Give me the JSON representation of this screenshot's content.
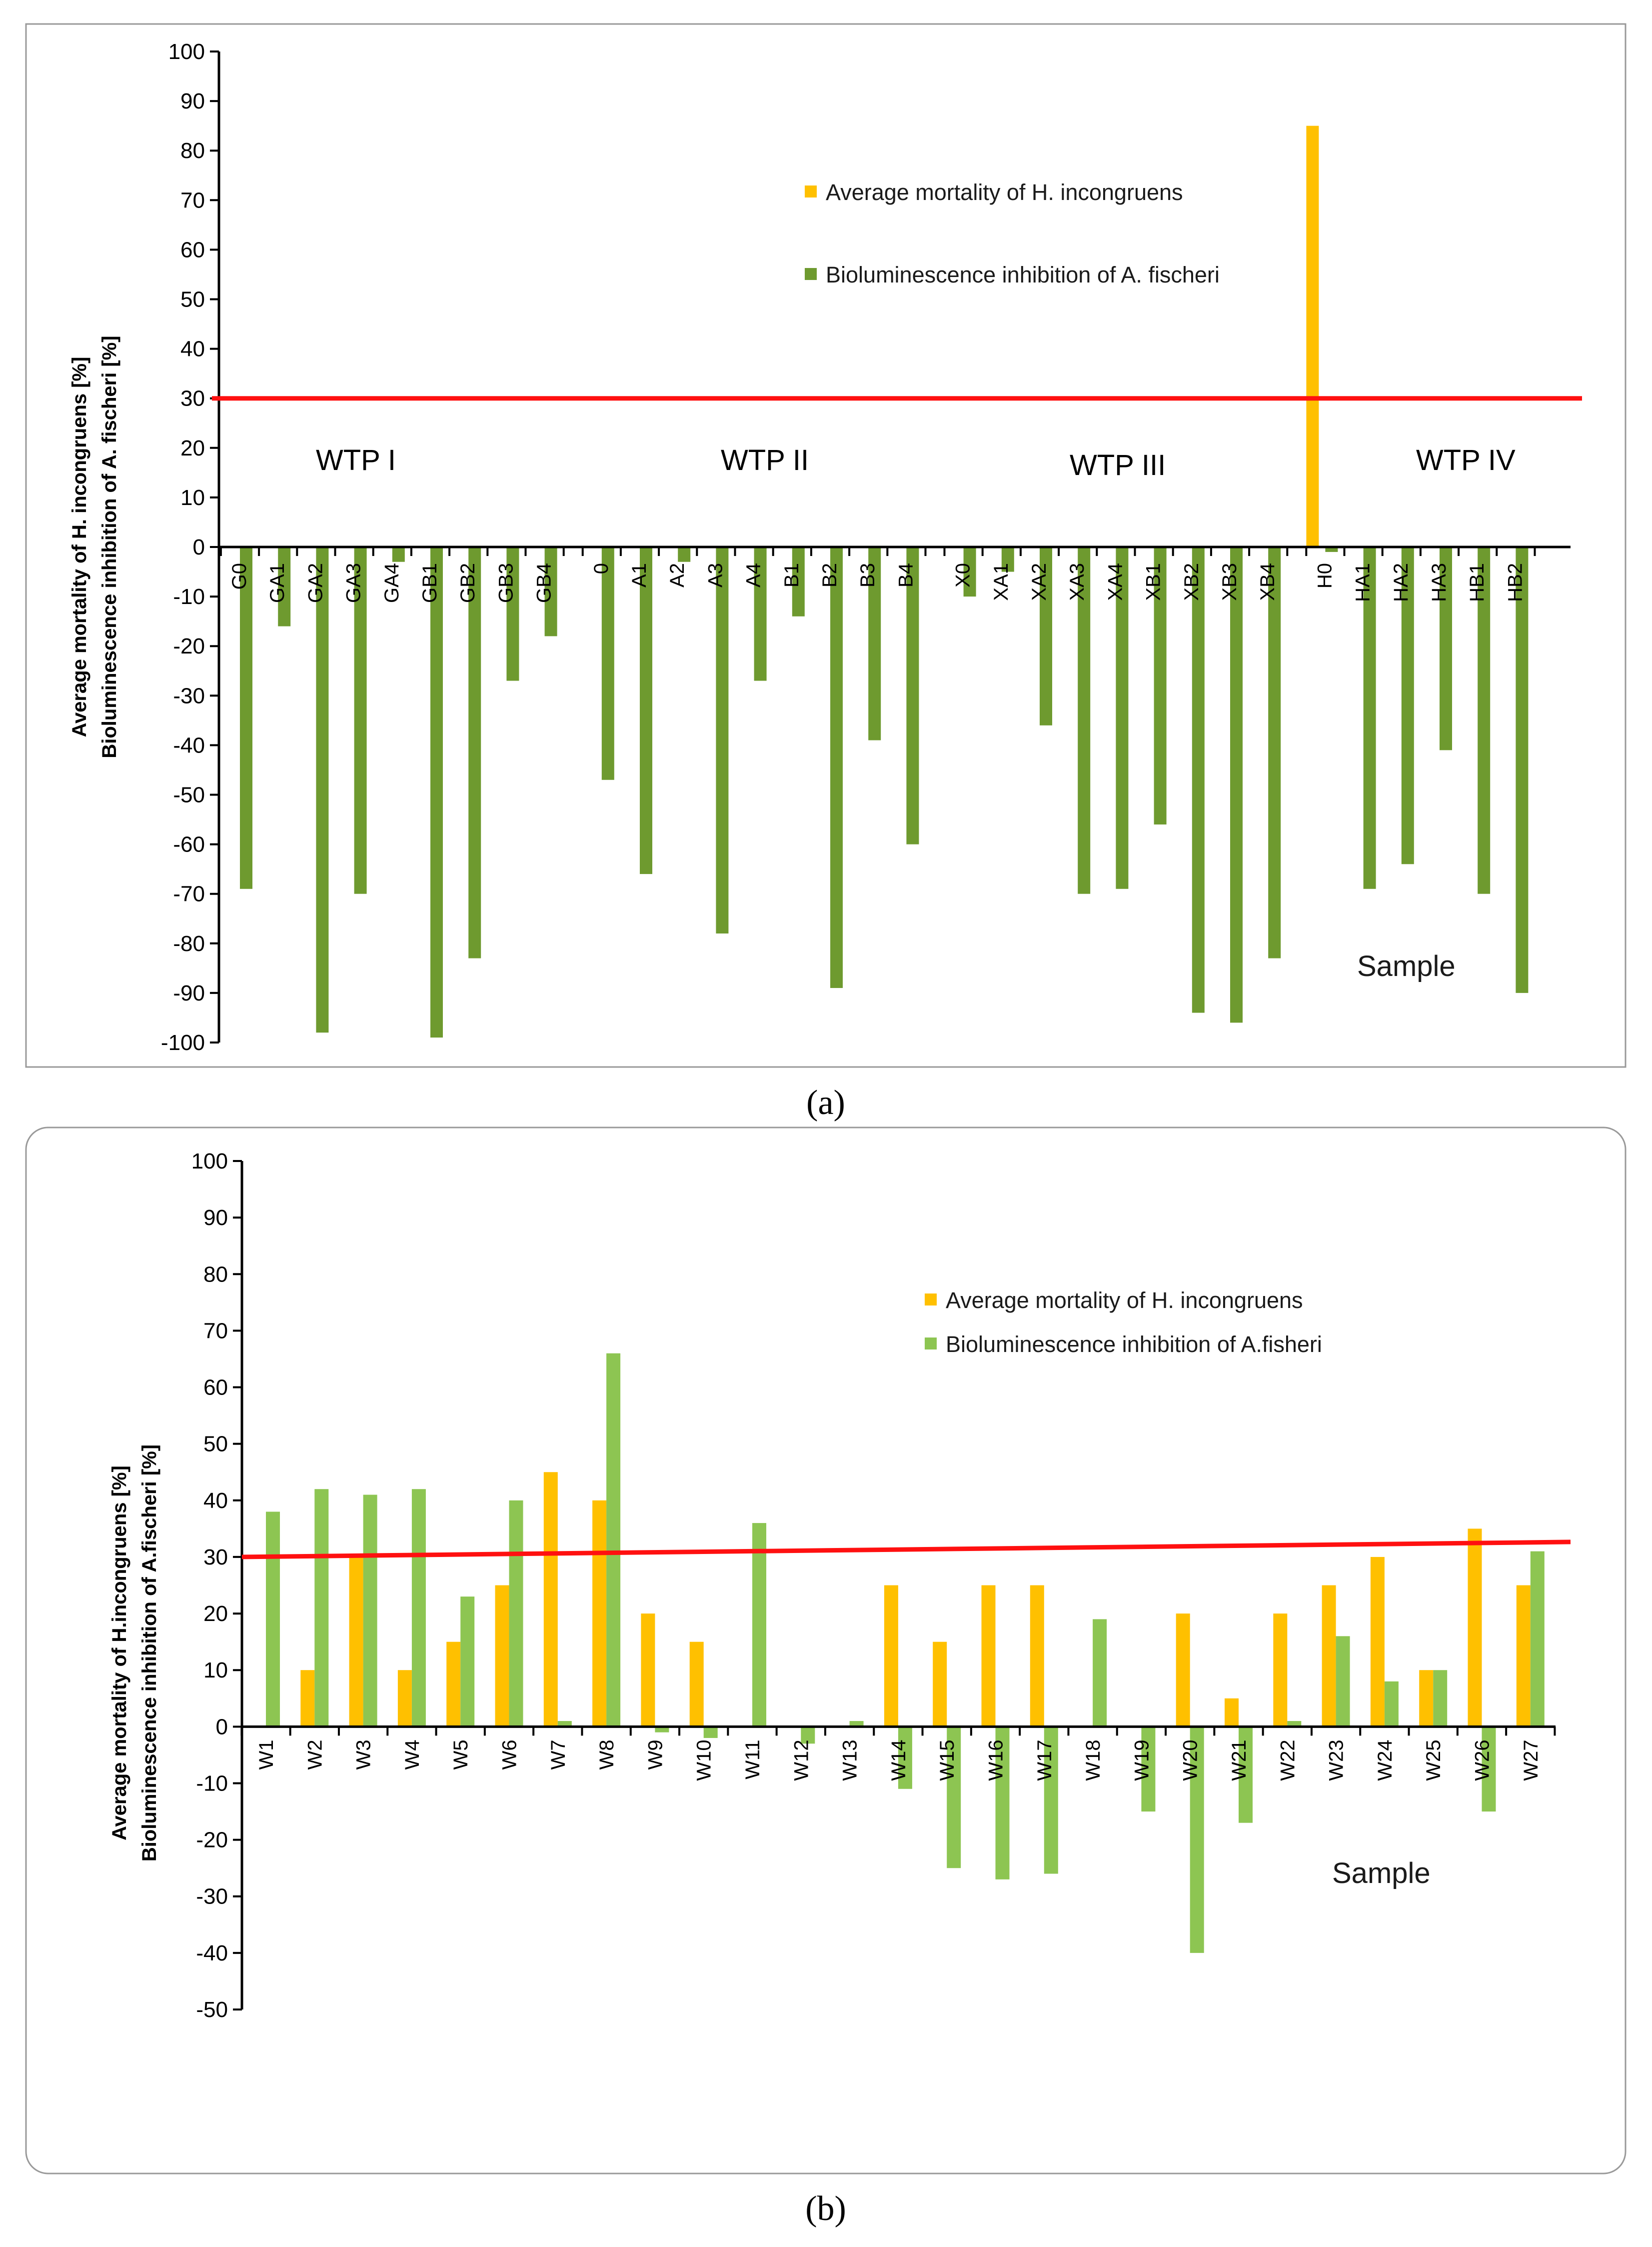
{
  "colors": {
    "mortality": "#FFC000",
    "inhibition_a": "#6E9A2F",
    "inhibition_b": "#8DC552",
    "threshold": "#FF1010",
    "frame": "#999999",
    "axis": "#000000"
  },
  "chart_data": [
    {
      "id": "a",
      "type": "bar",
      "caption": "(a)",
      "ylabel_line1": "Average mortality of H. incongruens [%]",
      "ylabel_line2": "Bioluminescence inhibition of A. fischeri [%]",
      "xlabel": "Sample",
      "ylim": [
        -100,
        100
      ],
      "yticks": [
        "100",
        "90",
        "80",
        "70",
        "60",
        "50",
        "40",
        "30",
        "20",
        "10",
        "0",
        "-10",
        "-20",
        "-30",
        "-40",
        "-50",
        "-60",
        "-70",
        "-80",
        "-90",
        "-100"
      ],
      "threshold": 30,
      "legend": [
        "Average mortality of H. incongruens",
        "Bioluminescence inhibition of A. fischeri"
      ],
      "groups": [
        {
          "label": "WTP I",
          "categories": [
            "G0",
            "GA1",
            "GA2",
            "GA3",
            "GA4",
            "GB1",
            "GB2",
            "GB3",
            "GB4"
          ]
        },
        {
          "label": "WTP II",
          "categories": [
            "0",
            "A1",
            "A2",
            "A3",
            "A4",
            "B1",
            "B2",
            "B3",
            "B4"
          ]
        },
        {
          "label": "WTP III",
          "categories": [
            "X0",
            "XA1",
            "XA2",
            "XA3",
            "XA4",
            "XB1",
            "XB2",
            "XB3",
            "XB4"
          ]
        },
        {
          "label": "WTP IV",
          "categories": [
            "H0",
            "HA1",
            "HA2",
            "HA3",
            "HB1",
            "HB2"
          ]
        }
      ],
      "series": [
        {
          "name": "Average mortality of H. incongruens",
          "values": [
            0,
            0,
            0,
            0,
            0,
            0,
            0,
            0,
            0,
            0,
            0,
            0,
            0,
            0,
            0,
            0,
            0,
            0,
            0,
            0,
            0,
            0,
            0,
            0,
            0,
            0,
            0,
            85,
            0,
            0,
            0,
            0,
            0
          ]
        },
        {
          "name": "Bioluminescence inhibition of A. fischeri",
          "values": [
            -69,
            -16,
            -98,
            -70,
            -3,
            -99,
            -83,
            -27,
            -18,
            -47,
            -66,
            -3,
            -78,
            -27,
            -14,
            -89,
            -39,
            -60,
            -10,
            -5,
            -36,
            -70,
            -69,
            -56,
            -94,
            -96,
            -83,
            -1,
            -69,
            -64,
            -41,
            -70,
            -90
          ]
        }
      ]
    },
    {
      "id": "b",
      "type": "bar",
      "caption": "(b)",
      "ylabel_line1": "Average mortality of H.incongruens [%]",
      "ylabel_line2": "Bioluminescence inhibition of A.fischeri [%]",
      "xlabel": "Sample",
      "ylim": [
        -50,
        100
      ],
      "yticks": [
        "100",
        "90",
        "80",
        "70",
        "60",
        "50",
        "40",
        "30",
        "20",
        "10",
        "0",
        "-10",
        "-20",
        "-30",
        "-40",
        "-50"
      ],
      "threshold": 30,
      "legend": [
        "Average mortality of H. incongruens",
        "Bioluminescence inhibition of A.fisheri"
      ],
      "categories": [
        "W1",
        "W2",
        "W3",
        "W4",
        "W5",
        "W6",
        "W7",
        "W8",
        "W9",
        "W10",
        "W11",
        "W12",
        "W13",
        "W14",
        "W15",
        "W16",
        "W17",
        "W18",
        "W19",
        "W20",
        "W21",
        "W22",
        "W23",
        "W24",
        "W25",
        "W26",
        "W27"
      ],
      "series": [
        {
          "name": "Average mortality of H. incongruens",
          "values": [
            0,
            10,
            30,
            10,
            15,
            25,
            45,
            40,
            20,
            15,
            0,
            0,
            0,
            25,
            15,
            25,
            25,
            0,
            0,
            20,
            5,
            20,
            25,
            30,
            10,
            35,
            25
          ]
        },
        {
          "name": "Bioluminescence inhibition of A.fisheri",
          "values": [
            38,
            42,
            41,
            42,
            23,
            40,
            1,
            66,
            -1,
            -2,
            36,
            -3,
            1,
            -11,
            -25,
            -27,
            -26,
            19,
            -15,
            -40,
            -17,
            1,
            16,
            8,
            10,
            -15,
            31
          ]
        }
      ]
    }
  ]
}
